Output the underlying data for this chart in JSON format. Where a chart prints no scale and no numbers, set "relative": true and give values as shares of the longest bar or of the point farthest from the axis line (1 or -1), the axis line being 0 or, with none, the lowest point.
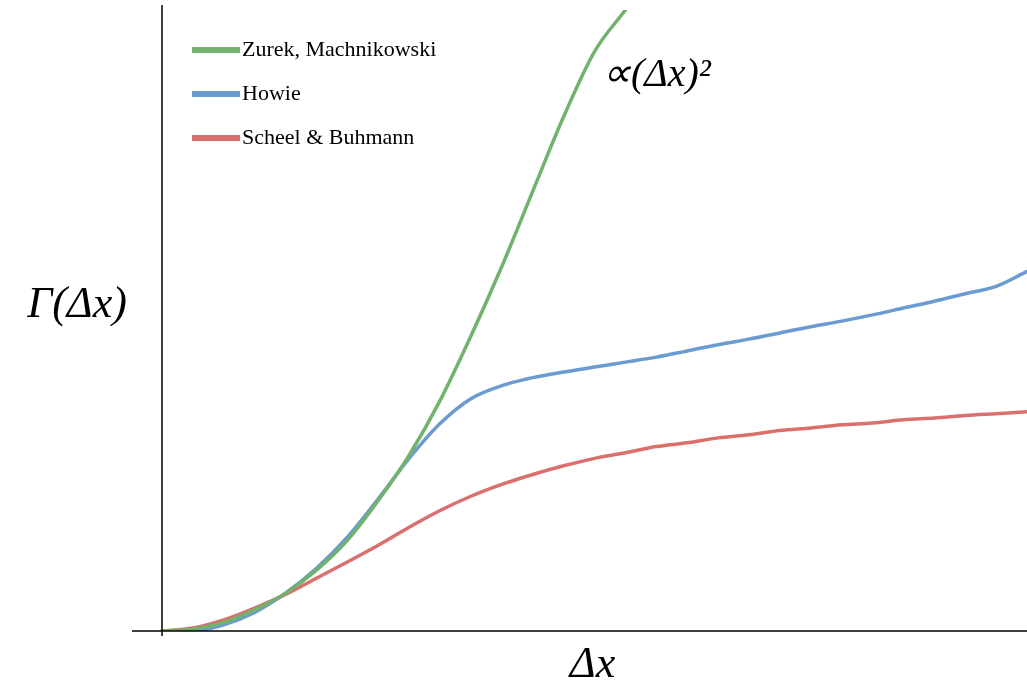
{
  "chart_data": {
    "type": "line",
    "relative": true,
    "xlabel": "Δx",
    "ylabel": "Γ(Δx)",
    "legend": "top left",
    "marker": "none",
    "line_style": "solid",
    "annotations": [
      "∝(Δx)²"
    ],
    "categories": [
      null,
      null,
      null,
      null,
      null,
      null,
      null,
      null,
      null,
      null,
      null,
      null,
      null,
      null,
      null,
      null,
      null,
      null,
      null,
      null,
      null,
      null,
      null,
      null,
      null,
      null,
      null,
      null,
      null
    ],
    "series": [
      {
        "name": "Zurek, Machnikowski",
        "color": "#72b26c",
        "values": [
          0,
          0.003,
          0.014,
          0.034,
          0.061,
          0.098,
          0.146,
          0.21,
          0.283,
          0.371,
          0.475,
          0.587,
          0.708,
          0.828,
          0.933,
          1.0,
          null,
          null,
          null,
          null,
          null,
          null,
          null,
          null,
          null,
          null,
          null,
          null,
          null
        ]
      },
      {
        "name": "Howie",
        "color": "#6a9bd1",
        "values": [
          0,
          0,
          0.01,
          0.03,
          0.061,
          0.101,
          0.151,
          0.213,
          0.278,
          0.334,
          0.374,
          0.395,
          0.408,
          0.417,
          0.425,
          0.433,
          0.441,
          0.451,
          0.461,
          0.47,
          0.48,
          0.49,
          0.499,
          0.509,
          0.52,
          0.531,
          0.543,
          0.555,
          0.579
        ]
      },
      {
        "name": "Scheel & Buhmann",
        "color": "#d9706e",
        "values": [
          0,
          0.005,
          0.018,
          0.037,
          0.059,
          0.085,
          0.111,
          0.138,
          0.167,
          0.194,
          0.217,
          0.236,
          0.252,
          0.266,
          0.278,
          0.287,
          0.297,
          0.303,
          0.311,
          0.316,
          0.323,
          0.327,
          0.332,
          0.335,
          0.34,
          0.343,
          0.347,
          0.35,
          0.353
        ]
      }
    ]
  }
}
